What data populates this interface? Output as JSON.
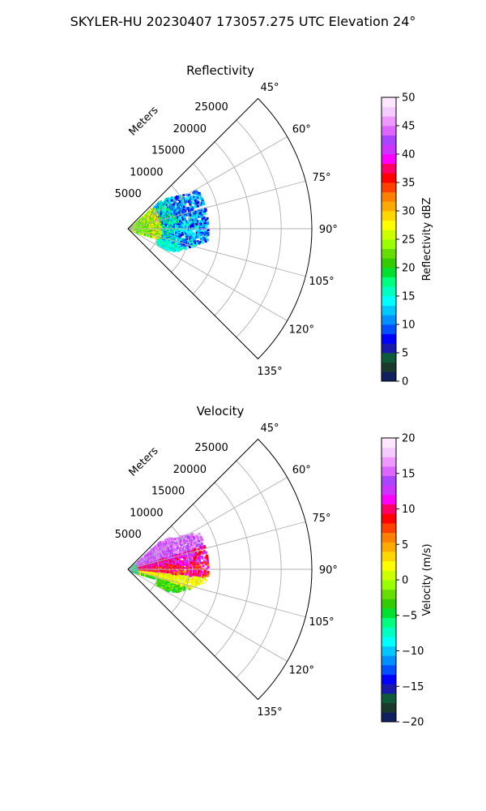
{
  "figure": {
    "suptitle": "SKYLER-HU  20230407  173057.275 UTC Elevation 24°"
  },
  "chart_data": [
    {
      "type": "polar-sector",
      "title": "Reflectivity",
      "radial_label": "Meters",
      "radial_ticks": [
        5000,
        10000,
        15000,
        20000,
        25000
      ],
      "radial_tick_labels": [
        "5000",
        "10000",
        "15000",
        "20000",
        "25000"
      ],
      "r_max": 30000,
      "theta_range_deg": [
        45,
        135
      ],
      "theta_ticks_deg": [
        45,
        60,
        75,
        90,
        105,
        120,
        135
      ],
      "theta_tick_labels": [
        "45°",
        "60°",
        "75°",
        "90°",
        "105°",
        "120°",
        "135°"
      ],
      "grid": true,
      "colorbar": {
        "label": "Reflectivity dBZ",
        "range": [
          0,
          50
        ],
        "ticks": [
          0,
          5,
          10,
          15,
          20,
          25,
          30,
          35,
          40,
          45,
          50
        ],
        "tick_labels": [
          "0",
          "5",
          "10",
          "15",
          "20",
          "25",
          "30",
          "35",
          "40",
          "45",
          "50"
        ],
        "colors": [
          "#10205e",
          "#1b3a2e",
          "#0e5a3a",
          "#1a1aa8",
          "#0000ff",
          "#0050ff",
          "#0090ff",
          "#00c8ff",
          "#00ffff",
          "#00ffc0",
          "#00ff80",
          "#00e030",
          "#33cc00",
          "#66dd00",
          "#99ff00",
          "#ccff00",
          "#ffff00",
          "#ffd700",
          "#ffaa00",
          "#ff7f00",
          "#ff4000",
          "#ff0000",
          "#ff0066",
          "#ff00ff",
          "#cc33ff",
          "#aa44ff",
          "#dd66ff",
          "#ee99ff",
          "#f5ccff",
          "#ffe8ff"
        ]
      },
      "echo_profile": {
        "radial_bins_m": [
          1000,
          3000,
          5000,
          7000,
          9000,
          11000
        ],
        "mean_value_by_bin": [
          22,
          22,
          26,
          10,
          10,
          10
        ]
      }
    },
    {
      "type": "polar-sector",
      "title": "Velocity",
      "radial_label": "Meters",
      "radial_ticks": [
        5000,
        10000,
        15000,
        20000,
        25000
      ],
      "radial_tick_labels": [
        "5000",
        "10000",
        "15000",
        "20000",
        "25000"
      ],
      "r_max": 30000,
      "theta_range_deg": [
        45,
        135
      ],
      "theta_ticks_deg": [
        45,
        60,
        75,
        90,
        105,
        120,
        135
      ],
      "theta_tick_labels": [
        "45°",
        "60°",
        "75°",
        "90°",
        "105°",
        "120°",
        "135°"
      ],
      "grid": true,
      "colorbar": {
        "label": "Velocity (m/s)",
        "range": [
          -20,
          20
        ],
        "ticks": [
          -20,
          -15,
          -10,
          -5,
          0,
          5,
          10,
          15,
          20
        ],
        "tick_labels": [
          "−20",
          "−15",
          "−10",
          "−5",
          "0",
          "5",
          "10",
          "15",
          "20"
        ],
        "colors": [
          "#10205e",
          "#1b3a2e",
          "#0e5a3a",
          "#1a1aa8",
          "#0000ff",
          "#0050ff",
          "#0090ff",
          "#00c8ff",
          "#00ffff",
          "#00ffc0",
          "#00ff80",
          "#00e030",
          "#33cc00",
          "#66dd00",
          "#99ff00",
          "#ccff00",
          "#ffff00",
          "#ffd700",
          "#ffaa00",
          "#ff7f00",
          "#ff4000",
          "#ff0000",
          "#ff0066",
          "#ff00ff",
          "#cc33ff",
          "#aa44ff",
          "#dd66ff",
          "#ee99ff",
          "#f5ccff",
          "#ffe8ff"
        ]
      },
      "velocity_profile": {
        "azimuth_bins_deg": [
          62,
          72,
          82,
          92,
          102,
          112
        ],
        "mean_value_by_bin": [
          15,
          15,
          10,
          8,
          2,
          -3
        ]
      }
    }
  ]
}
